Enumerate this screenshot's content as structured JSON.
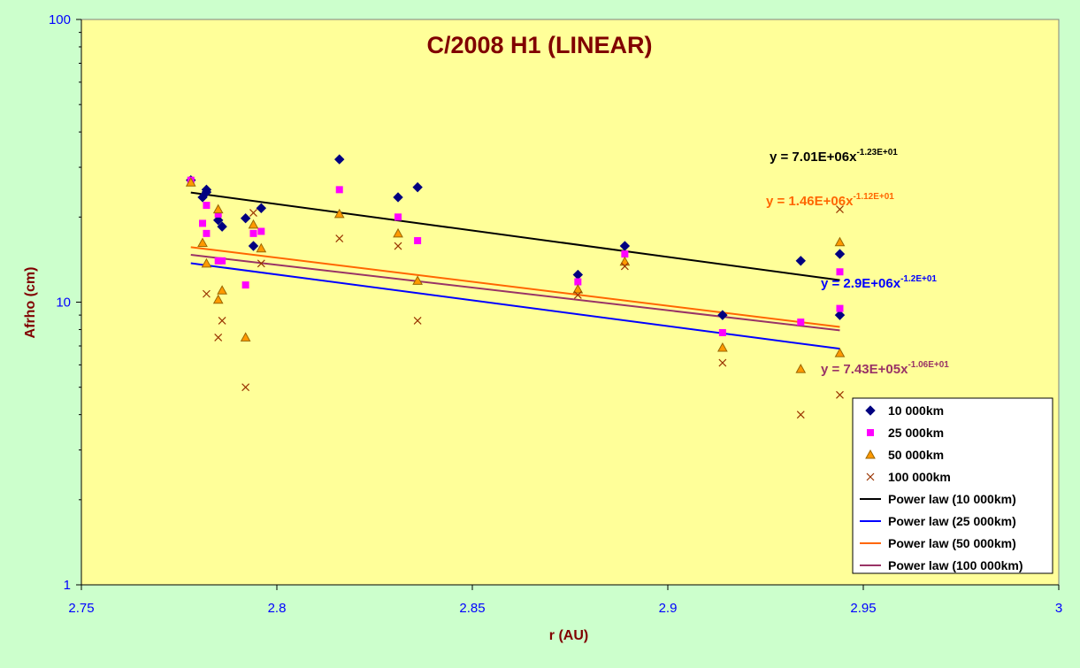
{
  "chart_data": {
    "type": "scatter",
    "title": "C/2008 H1 (LINEAR)",
    "xlabel": "r (AU)",
    "ylabel": "Afrho (cm)",
    "xlim": [
      2.75,
      3
    ],
    "ylim": [
      1,
      100
    ],
    "y_scale": "log",
    "grid": false,
    "legend_position": "bottom-right",
    "x_ticks": [
      "2.75",
      "2.8",
      "2.85",
      "2.9",
      "2.95",
      "3"
    ],
    "y_ticks": [
      "1",
      "10",
      "100"
    ],
    "colors": {
      "page_background": "#ccffcc",
      "plot_background": "#ffff99",
      "title": "#800000",
      "axis_labels": "#800000",
      "tick_labels": "#0000ff"
    },
    "series": [
      {
        "name": "10 000km",
        "marker": "diamond",
        "color": "#000080",
        "points": [
          [
            2.778,
            27.0
          ],
          [
            2.781,
            23.5
          ],
          [
            2.782,
            24.5
          ],
          [
            2.782,
            25.0
          ],
          [
            2.785,
            19.5
          ],
          [
            2.786,
            18.5
          ],
          [
            2.792,
            19.8
          ],
          [
            2.794,
            15.8
          ],
          [
            2.796,
            21.5
          ],
          [
            2.816,
            32.0
          ],
          [
            2.831,
            23.5
          ],
          [
            2.836,
            25.5
          ],
          [
            2.877,
            12.5
          ],
          [
            2.889,
            15.8
          ],
          [
            2.914,
            9.0
          ],
          [
            2.934,
            14.0
          ],
          [
            2.944,
            14.8
          ],
          [
            2.944,
            9.0
          ]
        ]
      },
      {
        "name": "25 000km",
        "marker": "square",
        "color": "#ff00ff",
        "points": [
          [
            2.778,
            27.0
          ],
          [
            2.781,
            19.0
          ],
          [
            2.782,
            22.0
          ],
          [
            2.782,
            17.5
          ],
          [
            2.785,
            20.5
          ],
          [
            2.785,
            14.0
          ],
          [
            2.786,
            14.0
          ],
          [
            2.792,
            11.5
          ],
          [
            2.794,
            17.5
          ],
          [
            2.796,
            17.8
          ],
          [
            2.816,
            25.0
          ],
          [
            2.831,
            20.0
          ],
          [
            2.836,
            16.5
          ],
          [
            2.877,
            11.8
          ],
          [
            2.889,
            14.8
          ],
          [
            2.914,
            7.8
          ],
          [
            2.934,
            8.5
          ],
          [
            2.944,
            12.8
          ],
          [
            2.944,
            9.5
          ]
        ]
      },
      {
        "name": "50 000km",
        "marker": "triangle",
        "color": "#ff9900",
        "stroke": "#996600",
        "points": [
          [
            2.778,
            26.5
          ],
          [
            2.781,
            16.2
          ],
          [
            2.782,
            13.7
          ],
          [
            2.785,
            21.3
          ],
          [
            2.785,
            10.2
          ],
          [
            2.786,
            11.0
          ],
          [
            2.792,
            7.5
          ],
          [
            2.794,
            18.8
          ],
          [
            2.796,
            15.5
          ],
          [
            2.816,
            20.5
          ],
          [
            2.831,
            17.5
          ],
          [
            2.836,
            11.9
          ],
          [
            2.877,
            11.1
          ],
          [
            2.889,
            13.9
          ],
          [
            2.914,
            6.9
          ],
          [
            2.934,
            5.8
          ],
          [
            2.944,
            16.3
          ],
          [
            2.944,
            6.6
          ]
        ]
      },
      {
        "name": "100 000km",
        "marker": "x",
        "color": "#993300",
        "points": [
          [
            2.782,
            10.7
          ],
          [
            2.785,
            7.5
          ],
          [
            2.786,
            8.6
          ],
          [
            2.792,
            5.0
          ],
          [
            2.794,
            20.7
          ],
          [
            2.796,
            13.7
          ],
          [
            2.816,
            16.8
          ],
          [
            2.831,
            15.8
          ],
          [
            2.836,
            8.6
          ],
          [
            2.877,
            10.6
          ],
          [
            2.889,
            13.4
          ],
          [
            2.914,
            6.1
          ],
          [
            2.934,
            4.0
          ],
          [
            2.944,
            21.3
          ],
          [
            2.944,
            4.7
          ]
        ]
      }
    ],
    "fits": [
      {
        "name": "Power law (10 000km)",
        "color": "#000000",
        "coefficient": 7010000.0,
        "exponent": -12.3,
        "equation": "y = 7.01E+06x",
        "equation_exponent": "-1.23E+01",
        "x_range": [
          2.778,
          2.944
        ]
      },
      {
        "name": "Power law (25 000km)",
        "color": "#0000ff",
        "coefficient": 2900000.0,
        "exponent": -12.0,
        "equation": "y = 2.9E+06x",
        "equation_exponent": "-1.2E+01",
        "x_range": [
          2.778,
          2.944
        ]
      },
      {
        "name": "Power law (50 000km)",
        "color": "#ff6600",
        "coefficient": 1460000.0,
        "exponent": -11.2,
        "equation": "y = 1.46E+06x",
        "equation_exponent": "-1.12E+01",
        "x_range": [
          2.778,
          2.944
        ]
      },
      {
        "name": "Power law (100 000km)",
        "color": "#993366",
        "coefficient": 743000.0,
        "exponent": -10.6,
        "equation": "y = 7.43E+05x",
        "equation_exponent": "-1.06E+01",
        "x_range": [
          2.778,
          2.944
        ]
      }
    ]
  }
}
